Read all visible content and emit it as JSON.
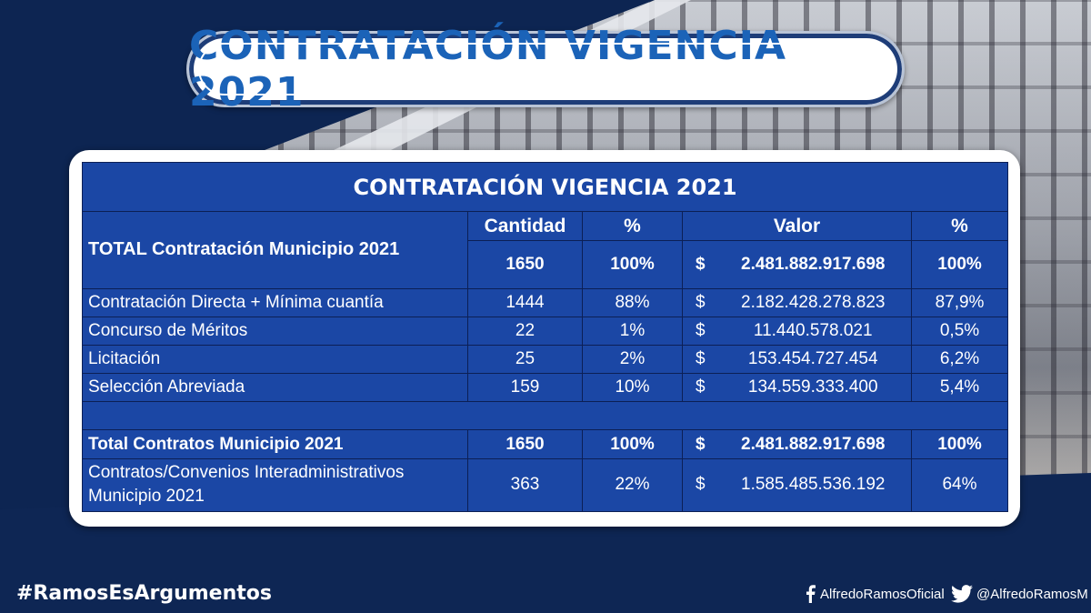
{
  "title": "CONTRATACIÓN VIGENCIA 2021",
  "table": {
    "caption": "CONTRATACIÓN VIGENCIA 2021",
    "headers": {
      "cantidad": "Cantidad",
      "pct1": "%",
      "valor": "Valor",
      "pct2": "%"
    },
    "currency_symbol": "$",
    "total_row": {
      "label": "TOTAL Contratación Municipio 2021",
      "cantidad": "1650",
      "pct1": "100%",
      "valor": "2.481.882.917.698",
      "pct2": "100%"
    },
    "rows": [
      {
        "label": "Contratación Directa + Mínima cuantía",
        "cantidad": "1444",
        "pct1": "88%",
        "valor": "2.182.428.278.823",
        "pct2": "87,9%"
      },
      {
        "label": "Concurso de Méritos",
        "cantidad": "22",
        "pct1": "1%",
        "valor": "11.440.578.021",
        "pct2": "0,5%"
      },
      {
        "label": "Licitación",
        "cantidad": "25",
        "pct1": "2%",
        "valor": "153.454.727.454",
        "pct2": "6,2%"
      },
      {
        "label": "Selección Abreviada",
        "cantidad": "159",
        "pct1": "10%",
        "valor": "134.559.333.400",
        "pct2": "5,4%"
      }
    ],
    "total_contracts": {
      "label": "Total Contratos Municipio 2021",
      "cantidad": "1650",
      "pct1": "100%",
      "valor": "2.481.882.917.698",
      "pct2": "100%"
    },
    "interadmin": {
      "label_line1": "Contratos/Convenios Interadministrativos",
      "label_line2": "Municipio 2021",
      "cantidad": "363",
      "pct1": "22%",
      "valor": "1.585.485.536.192",
      "pct2": "64%"
    }
  },
  "footer": {
    "hashtag": "#RamosEsArgumentos",
    "facebook_handle": "AlfredoRamosOficial",
    "twitter_handle": "@AlfredoRamosM",
    "facebook_icon": "facebook-icon",
    "twitter_icon": "twitter-icon"
  },
  "colors": {
    "navy": "#0d2552",
    "table_blue": "#1b47a5",
    "title_blue": "#1b63b8"
  }
}
